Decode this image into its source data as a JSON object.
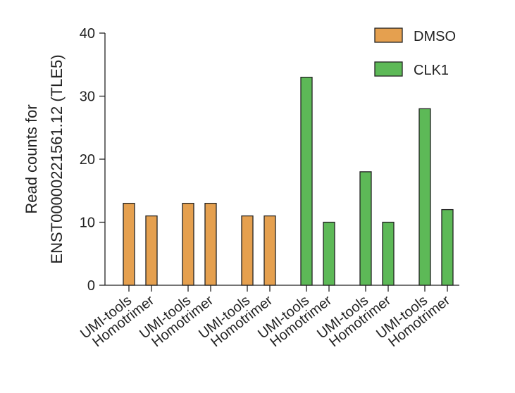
{
  "chart_data": {
    "type": "bar",
    "categories": [
      "UMI-tools",
      "Homotrimer",
      "UMI-tools",
      "Homotrimer",
      "UMI-tools",
      "Homotrimer",
      "UMI-tools",
      "Homotrimer",
      "UMI-tools",
      "Homotrimer",
      "UMI-tools",
      "Homotrimer"
    ],
    "series": [
      {
        "name": "DMSO",
        "color": "#E5A04F",
        "values": [
          13,
          11,
          13,
          13,
          11,
          11,
          null,
          null,
          null,
          null,
          null,
          null
        ]
      },
      {
        "name": "CLK1",
        "color": "#5DB957",
        "values": [
          null,
          null,
          null,
          null,
          null,
          null,
          33,
          10,
          18,
          10,
          28,
          12
        ]
      }
    ],
    "ylabel_lines": [
      "Read counts for",
      "ENST00000221561.12 (TLE5)"
    ],
    "xlabel": "",
    "ylim": [
      0,
      40
    ],
    "yticks": [
      0,
      10,
      20,
      30,
      40
    ],
    "legend_position": "top-right",
    "grid": false
  }
}
